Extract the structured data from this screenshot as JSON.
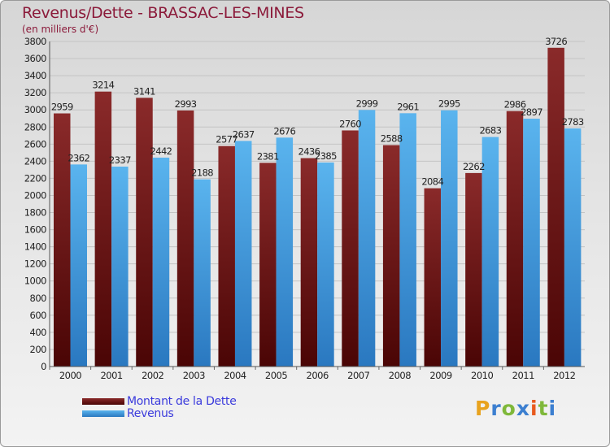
{
  "chart_data": {
    "type": "bar",
    "title": "Revenus/Dette - BRASSAC-LES-MINES",
    "subtitle": "(en milliers d'€)",
    "categories": [
      "2000",
      "2001",
      "2002",
      "2003",
      "2004",
      "2005",
      "2006",
      "2007",
      "2008",
      "2009",
      "2010",
      "2011",
      "2012"
    ],
    "series": [
      {
        "name": "Montant de la Dette",
        "color": "#7a1c1c",
        "values": [
          2959,
          3214,
          3141,
          2993,
          2577,
          2381,
          2436,
          2760,
          2588,
          2084,
          2262,
          2986,
          3726
        ]
      },
      {
        "name": "Revenus",
        "color": "#3fa0e0",
        "values": [
          2362,
          2337,
          2442,
          2188,
          2637,
          2676,
          2385,
          2999,
          2961,
          2995,
          2683,
          2897,
          2783
        ]
      }
    ],
    "ylim": [
      0,
      3800
    ],
    "yticks": [
      0,
      200,
      400,
      600,
      800,
      1000,
      1200,
      1400,
      1600,
      1800,
      2000,
      2200,
      2400,
      2600,
      2800,
      3000,
      3200,
      3400,
      3600,
      3800
    ],
    "grid": true,
    "legend": "bottom-left"
  },
  "branding": {
    "logo_letters": [
      "P",
      "r",
      "o",
      "x",
      "i",
      "t",
      "i"
    ],
    "logo_colors": [
      "#e8a21e",
      "#3c7fd0",
      "#7fb83a",
      "#3c7fd0",
      "#e85a1e",
      "#7fb83a",
      "#3c7fd0"
    ]
  }
}
